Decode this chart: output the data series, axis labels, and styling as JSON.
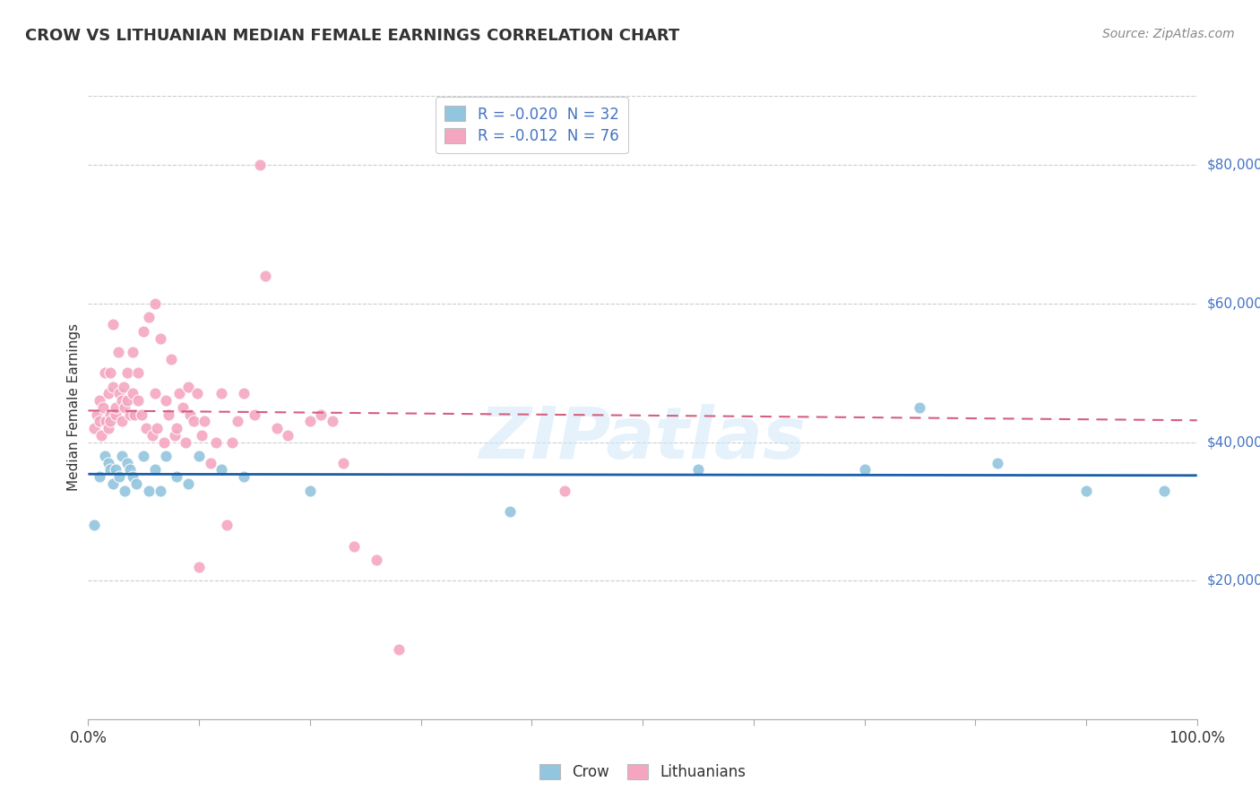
{
  "title": "CROW VS LITHUANIAN MEDIAN FEMALE EARNINGS CORRELATION CHART",
  "source": "Source: ZipAtlas.com",
  "ylabel": "Median Female Earnings",
  "legend_crow": "R = -0.020  N = 32",
  "legend_lith": "R = -0.012  N = 76",
  "legend_label_crow": "Crow",
  "legend_label_lith": "Lithuanians",
  "crow_color": "#92c5de",
  "lith_color": "#f4a6c0",
  "crow_line_color": "#1a5fa8",
  "lith_line_color": "#d46080",
  "watermark": "ZIPatlas",
  "ylim": [
    0,
    90000
  ],
  "xlim": [
    0.0,
    1.0
  ],
  "yticks": [
    20000,
    40000,
    60000,
    80000
  ],
  "ytick_labels": [
    "$20,000",
    "$40,000",
    "$60,000",
    "$80,000"
  ],
  "crow_x": [
    0.005,
    0.01,
    0.015,
    0.018,
    0.02,
    0.022,
    0.025,
    0.028,
    0.03,
    0.033,
    0.035,
    0.038,
    0.04,
    0.043,
    0.05,
    0.055,
    0.06,
    0.065,
    0.07,
    0.08,
    0.09,
    0.1,
    0.12,
    0.14,
    0.2,
    0.38,
    0.55,
    0.7,
    0.75,
    0.82,
    0.9,
    0.97
  ],
  "crow_y": [
    28000,
    35000,
    38000,
    37000,
    36000,
    34000,
    36000,
    35000,
    38000,
    33000,
    37000,
    36000,
    35000,
    34000,
    38000,
    33000,
    36000,
    33000,
    38000,
    35000,
    34000,
    38000,
    36000,
    35000,
    33000,
    30000,
    36000,
    36000,
    45000,
    37000,
    33000,
    33000
  ],
  "lith_x": [
    0.005,
    0.008,
    0.01,
    0.01,
    0.012,
    0.013,
    0.015,
    0.016,
    0.018,
    0.018,
    0.02,
    0.02,
    0.02,
    0.022,
    0.022,
    0.025,
    0.025,
    0.027,
    0.028,
    0.03,
    0.03,
    0.032,
    0.033,
    0.035,
    0.035,
    0.038,
    0.04,
    0.04,
    0.042,
    0.045,
    0.045,
    0.048,
    0.05,
    0.052,
    0.055,
    0.058,
    0.06,
    0.06,
    0.062,
    0.065,
    0.068,
    0.07,
    0.072,
    0.075,
    0.078,
    0.08,
    0.082,
    0.085,
    0.088,
    0.09,
    0.092,
    0.095,
    0.098,
    0.1,
    0.102,
    0.105,
    0.11,
    0.115,
    0.12,
    0.125,
    0.13,
    0.135,
    0.14,
    0.15,
    0.155,
    0.16,
    0.17,
    0.18,
    0.2,
    0.21,
    0.22,
    0.23,
    0.24,
    0.26,
    0.28,
    0.43
  ],
  "lith_y": [
    42000,
    44000,
    46000,
    43000,
    41000,
    45000,
    50000,
    43000,
    47000,
    42000,
    44000,
    50000,
    43000,
    57000,
    48000,
    44000,
    45000,
    53000,
    47000,
    43000,
    46000,
    48000,
    45000,
    46000,
    50000,
    44000,
    53000,
    47000,
    44000,
    46000,
    50000,
    44000,
    56000,
    42000,
    58000,
    41000,
    60000,
    47000,
    42000,
    55000,
    40000,
    46000,
    44000,
    52000,
    41000,
    42000,
    47000,
    45000,
    40000,
    48000,
    44000,
    43000,
    47000,
    22000,
    41000,
    43000,
    37000,
    40000,
    47000,
    28000,
    40000,
    43000,
    47000,
    44000,
    80000,
    64000,
    42000,
    41000,
    43000,
    44000,
    43000,
    37000,
    25000,
    23000,
    10000,
    33000
  ]
}
